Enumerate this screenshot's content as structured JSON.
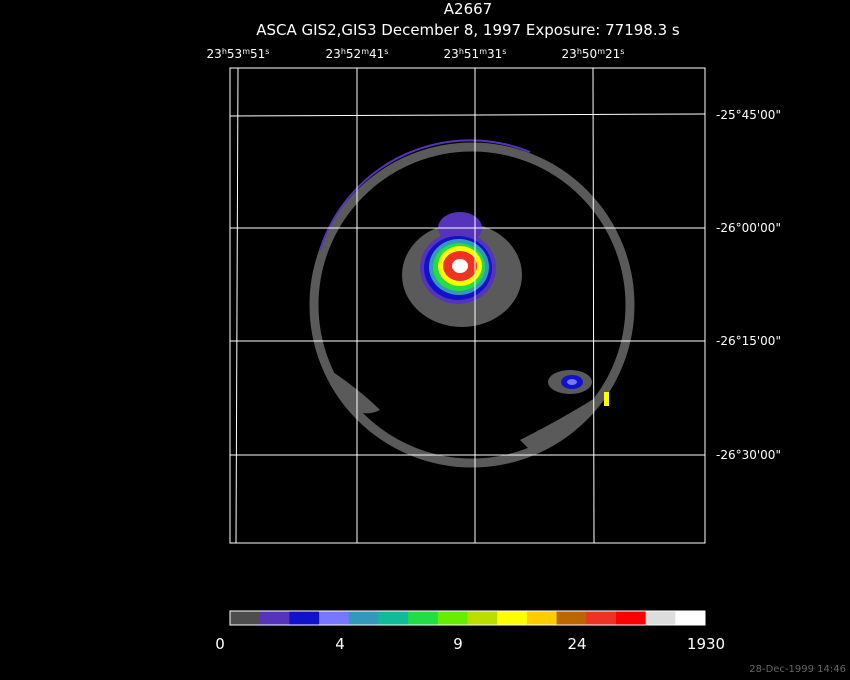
{
  "header": {
    "title": "A2667",
    "subtitle": "ASCA GIS2,GIS3 December 8, 1997 Exposure: 77198.3 s"
  },
  "ra_labels": [
    [
      "23",
      "h",
      "53",
      "m",
      "51",
      "s"
    ],
    [
      "23",
      "h",
      "52",
      "m",
      "41",
      "s"
    ],
    [
      "23",
      "h",
      "51",
      "m",
      "31",
      "s"
    ],
    [
      "23",
      "h",
      "50",
      "m",
      "21",
      "s"
    ]
  ],
  "dec_labels": [
    "-25°45'00\"",
    "-26°00'00\"",
    "-26°15'00\"",
    "-26°30'00\""
  ],
  "colorbar": {
    "colors": [
      "#4d4d4d",
      "#5533bb",
      "#1111cc",
      "#7777ff",
      "#3399bb",
      "#11bb99",
      "#22dd44",
      "#66ee00",
      "#bbdd00",
      "#ffff00",
      "#ffcc00",
      "#bb6600",
      "#ee3322",
      "#ff0000",
      "#dddddd",
      "#ffffff"
    ],
    "labels": [
      "0",
      "4",
      "9",
      "24",
      "1930"
    ]
  },
  "timestamp": "28-Dec-1999 14:46"
}
